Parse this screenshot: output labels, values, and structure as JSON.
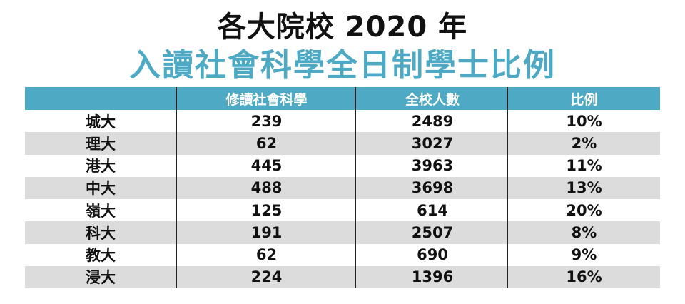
{
  "title": {
    "line1": "各大院校 2020 年",
    "line2": "入讀社會科學全日制學士比例"
  },
  "colors": {
    "accent": "#4eaac4",
    "row_shade": "#dcdcdc",
    "text": "#111111"
  },
  "chart_data": {
    "type": "table",
    "title": "各大院校 2020 年 入讀社會科學全日制學士比例",
    "columns": [
      "",
      "修讀社會科學",
      "全校人數",
      "比例"
    ],
    "rows": [
      [
        "城大",
        "239",
        "2489",
        "10%"
      ],
      [
        "理大",
        "62",
        "3027",
        "2%"
      ],
      [
        "港大",
        "445",
        "3963",
        "11%"
      ],
      [
        "中大",
        "488",
        "3698",
        "13%"
      ],
      [
        "嶺大",
        "125",
        "614",
        "20%"
      ],
      [
        "科大",
        "191",
        "2507",
        "8%"
      ],
      [
        "教大",
        "62",
        "690",
        "9%"
      ],
      [
        "浸大",
        "224",
        "1396",
        "16%"
      ]
    ]
  }
}
